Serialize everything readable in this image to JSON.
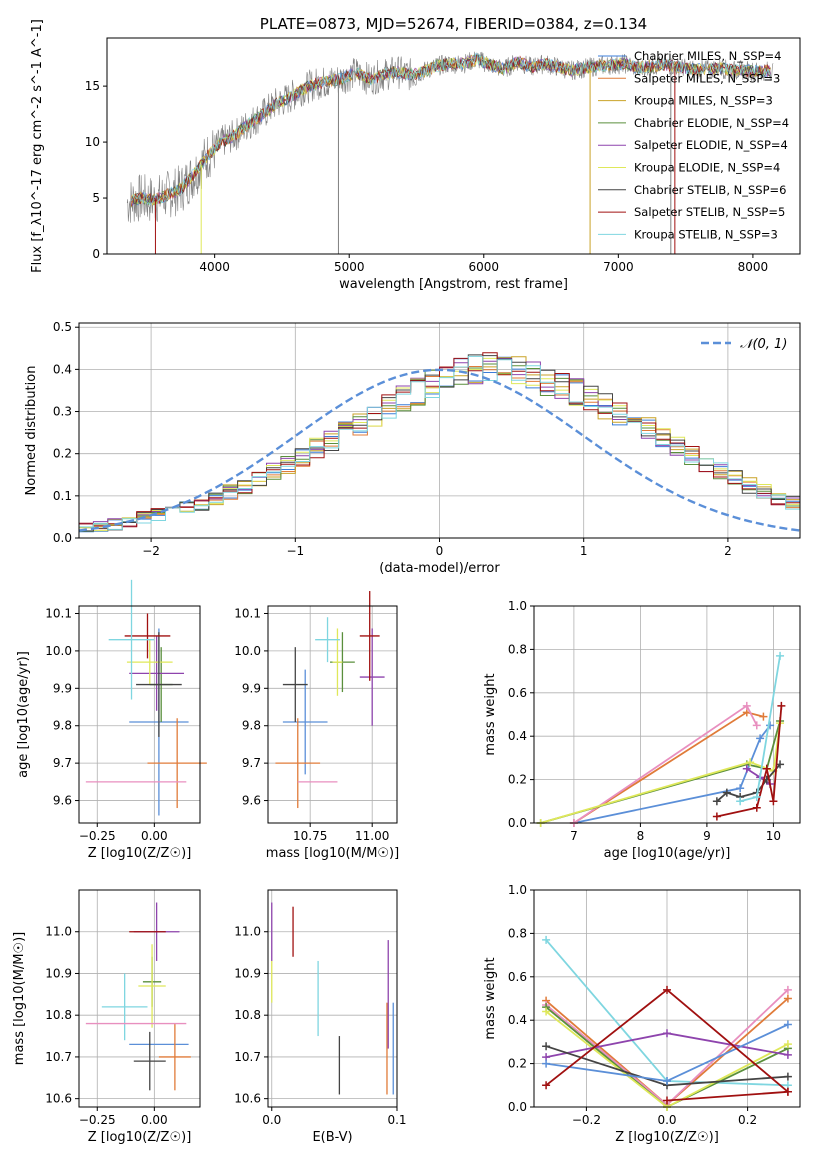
{
  "chart_data": [
    {
      "type": "line",
      "title": "PLATE=0873, MJD=52674, FIBERID=0384, z=0.134",
      "xlabel": "wavelength [Angstrom, rest frame]",
      "ylabel": "Flux [f_λ10^-17 erg cm^-2 s^-1 A^-1]",
      "xlim": [
        3200,
        8350
      ],
      "ylim": [
        0,
        19.3
      ],
      "xticks": [
        "4000",
        "5000",
        "6000",
        "7000",
        "8000"
      ],
      "yticks": [
        "0",
        "5",
        "10",
        "15"
      ],
      "grid": false,
      "legend_position": "top-right",
      "spectrum_envelope": {
        "x": [
          3350,
          3450,
          3550,
          3650,
          3750,
          3850,
          3950,
          4050,
          4150,
          4250,
          4350,
          4450,
          4550,
          4650,
          4750,
          4850,
          4950,
          5050,
          5150,
          5250,
          5350,
          5450,
          5550,
          5650,
          5750,
          5850,
          5950,
          6050,
          6150,
          6250,
          6350,
          6450,
          6550,
          6650,
          6750,
          6850,
          6950,
          7050,
          7150,
          7250,
          7350,
          7450,
          7550,
          7650,
          7750,
          7850,
          7950,
          8050,
          8150
        ],
        "y": [
          4.6,
          5.0,
          4.8,
          5.3,
          5.8,
          7.2,
          8.8,
          10.0,
          10.6,
          11.6,
          12.4,
          13.4,
          13.9,
          14.7,
          15.2,
          15.4,
          15.7,
          16.2,
          15.6,
          16.0,
          16.3,
          16.0,
          16.3,
          16.8,
          17.0,
          17.0,
          17.4,
          16.9,
          16.5,
          17.2,
          16.7,
          17.0,
          16.7,
          16.4,
          16.6,
          16.8,
          16.9,
          17.0,
          16.6,
          16.8,
          16.9,
          16.7,
          16.5,
          16.5,
          16.6,
          16.4,
          16.4,
          16.3,
          16.4
        ]
      },
      "series": [
        {
          "name": "Chabrier MILES, N_SSP=4",
          "color": "#3b7dd8"
        },
        {
          "name": "Salpeter MILES, N_SSP=3",
          "color": "#e07b39"
        },
        {
          "name": "Kroupa MILES, N_SSP=3",
          "color": "#c9a227"
        },
        {
          "name": "Chabrier ELODIE, N_SSP=4",
          "color": "#5a8f3c"
        },
        {
          "name": "Salpeter ELODIE, N_SSP=4",
          "color": "#8e44ad"
        },
        {
          "name": "Kroupa ELODIE, N_SSP=4",
          "color": "#dfe85a"
        },
        {
          "name": "Chabrier STELIB, N_SSP=6",
          "color": "#444444"
        },
        {
          "name": "Salpeter STELIB, N_SSP=5",
          "color": "#a01010"
        },
        {
          "name": "Kroupa STELIB, N_SSP=3",
          "color": "#7fd6e0"
        }
      ]
    },
    {
      "type": "line",
      "xlabel": "(data-model)/error",
      "ylabel": "Normed distribution",
      "xlim": [
        -2.5,
        2.5
      ],
      "ylim": [
        0,
        0.51
      ],
      "xticks": [
        "−2",
        "−1",
        "0",
        "1",
        "2"
      ],
      "yticks": [
        "0.0",
        "0.1",
        "0.2",
        "0.3",
        "0.4",
        "0.5"
      ],
      "grid": true,
      "legend_position": "top-right",
      "reference_label": "𝒩(0, 1)",
      "reference_color": "#5b8fd8",
      "histogram_mean": {
        "bin_edges_from": -2.5,
        "bin_width": 0.1,
        "values": [
          0.022,
          0.026,
          0.032,
          0.04,
          0.048,
          0.055,
          0.063,
          0.072,
          0.082,
          0.093,
          0.108,
          0.124,
          0.14,
          0.156,
          0.172,
          0.192,
          0.212,
          0.232,
          0.252,
          0.272,
          0.292,
          0.312,
          0.33,
          0.348,
          0.366,
          0.38,
          0.392,
          0.4,
          0.404,
          0.404,
          0.396,
          0.386,
          0.372,
          0.36,
          0.346,
          0.33,
          0.312,
          0.296,
          0.278,
          0.258,
          0.238,
          0.216,
          0.195,
          0.176,
          0.158,
          0.14,
          0.124,
          0.11,
          0.096,
          0.084,
          0.072
        ]
      }
    },
    {
      "type": "scatter",
      "xlabel": "Z [log10(Z/Z☉)]",
      "ylabel": "age [log10(age/yr)]",
      "xlim": [
        -0.33,
        0.2
      ],
      "ylim": [
        9.54,
        10.12
      ],
      "xticks": [
        "−0.25",
        "0.00"
      ],
      "yticks": [
        "9.6",
        "9.7",
        "9.8",
        "9.9",
        "10.0",
        "10.1"
      ],
      "points": [
        {
          "x": 0.02,
          "xerr": 0.13,
          "y": 9.81,
          "yerr": 0.25,
          "color": "#5b8fd8"
        },
        {
          "x": 0.1,
          "xerr": 0.13,
          "y": 9.7,
          "yerr": 0.12,
          "color": "#e07b39"
        },
        {
          "x": 0.03,
          "xerr": 0.05,
          "y": 9.91,
          "yerr": 0.1,
          "color": "#5a8f3c"
        },
        {
          "x": 0.01,
          "xerr": 0.12,
          "y": 9.94,
          "yerr": 0.1,
          "color": "#8e44ad"
        },
        {
          "x": -0.02,
          "xerr": 0.1,
          "y": 9.97,
          "yerr": 0.06,
          "color": "#dfe85a"
        },
        {
          "x": 0.02,
          "xerr": 0.1,
          "y": 9.91,
          "yerr": 0.14,
          "color": "#444444"
        },
        {
          "x": -0.03,
          "xerr": 0.1,
          "y": 10.04,
          "yerr": 0.06,
          "color": "#a01010"
        },
        {
          "x": -0.1,
          "xerr": 0.1,
          "y": 10.03,
          "yerr": 0.16,
          "color": "#7fd6e0"
        },
        {
          "x": -0.08,
          "xerr": 0.22,
          "y": 9.65,
          "yerr": 0.0,
          "color": "#e88fbf"
        }
      ]
    },
    {
      "type": "scatter",
      "xlabel": "mass [log10(M/M☉)]",
      "ylabel": "",
      "xlim": [
        10.58,
        11.1
      ],
      "ylim": [
        9.54,
        10.12
      ],
      "xticks": [
        "10.75",
        "11.00"
      ],
      "yticks": [
        "9.6",
        "9.7",
        "9.8",
        "9.9",
        "10.0",
        "10.1"
      ],
      "points": [
        {
          "x": 10.73,
          "xerr": 0.09,
          "y": 9.81,
          "yerr": 0.14,
          "color": "#5b8fd8"
        },
        {
          "x": 10.7,
          "xerr": 0.09,
          "y": 9.7,
          "yerr": 0.12,
          "color": "#e07b39"
        },
        {
          "x": 10.88,
          "xerr": 0.05,
          "y": 9.97,
          "yerr": 0.08,
          "color": "#5a8f3c"
        },
        {
          "x": 11.0,
          "xerr": 0.05,
          "y": 9.93,
          "yerr": 0.13,
          "color": "#8e44ad"
        },
        {
          "x": 10.86,
          "xerr": 0.02,
          "y": 9.97,
          "yerr": 0.09,
          "color": "#dfe85a"
        },
        {
          "x": 10.69,
          "xerr": 0.05,
          "y": 9.91,
          "yerr": 0.1,
          "color": "#444444"
        },
        {
          "x": 10.99,
          "xerr": 0.04,
          "y": 10.04,
          "yerr": 0.12,
          "color": "#a01010"
        },
        {
          "x": 10.82,
          "xerr": 0.05,
          "y": 10.03,
          "yerr": 0.06,
          "color": "#7fd6e0"
        },
        {
          "x": 10.78,
          "xerr": 0.08,
          "y": 9.65,
          "yerr": 0.0,
          "color": "#e88fbf"
        }
      ]
    },
    {
      "type": "line",
      "xlabel": "age [log10(age/yr)]",
      "ylabel": "mass weight",
      "xlim": [
        6.4,
        10.4
      ],
      "ylim": [
        0,
        1
      ],
      "xticks": [
        "7",
        "8",
        "9",
        "10"
      ],
      "yticks": [
        "0.0",
        "0.2",
        "0.4",
        "0.6",
        "0.8",
        "1.0"
      ],
      "grid": true,
      "series": [
        {
          "color": "#5b8fd8",
          "x": [
            7.0,
            9.5,
            9.8,
            9.95
          ],
          "y": [
            0.0,
            0.16,
            0.39,
            0.45
          ]
        },
        {
          "color": "#e07b39",
          "x": [
            7.0,
            9.6,
            9.85
          ],
          "y": [
            0.0,
            0.51,
            0.49
          ]
        },
        {
          "color": "#e88fbf",
          "x": [
            7.0,
            9.6,
            9.75
          ],
          "y": [
            0.0,
            0.54,
            0.45
          ]
        },
        {
          "color": "#5a8f3c",
          "x": [
            6.5,
            9.6,
            9.9,
            10.1
          ],
          "y": [
            0.0,
            0.27,
            0.25,
            0.47
          ]
        },
        {
          "color": "#dfe85a",
          "x": [
            6.5,
            9.65,
            10.0,
            10.1
          ],
          "y": [
            0.0,
            0.28,
            0.24,
            0.46
          ]
        },
        {
          "color": "#8e44ad",
          "x": [
            9.6,
            9.8,
            9.95
          ],
          "y": [
            0.25,
            0.21,
            0.18
          ]
        },
        {
          "color": "#444444",
          "x": [
            9.15,
            9.3,
            9.5,
            9.75,
            9.9,
            10.1
          ],
          "y": [
            0.1,
            0.14,
            0.12,
            0.14,
            0.2,
            0.27
          ]
        },
        {
          "color": "#a01010",
          "x": [
            9.15,
            9.75,
            9.9,
            10.0,
            10.12
          ],
          "y": [
            0.03,
            0.07,
            0.25,
            0.1,
            0.54
          ]
        },
        {
          "color": "#7fd6e0",
          "x": [
            9.5,
            9.75,
            10.1
          ],
          "y": [
            0.1,
            0.12,
            0.77
          ]
        }
      ]
    },
    {
      "type": "scatter",
      "xlabel": "Z [log10(Z/Z☉)]",
      "ylabel": "mass [log10(M/M☉)]",
      "xlim": [
        -0.33,
        0.2
      ],
      "ylim": [
        10.58,
        11.1
      ],
      "xticks": [
        "−0.25",
        "0.00"
      ],
      "yticks": [
        "10.6",
        "10.7",
        "10.8",
        "10.9",
        "11.0"
      ],
      "points": [
        {
          "x": 0.02,
          "xerr": 0.13,
          "y": 10.73,
          "yerr": 0.0,
          "color": "#5b8fd8"
        },
        {
          "x": 0.09,
          "xerr": 0.07,
          "y": 10.7,
          "yerr": 0.08,
          "color": "#e07b39"
        },
        {
          "x": -0.01,
          "xerr": 0.04,
          "y": 10.88,
          "yerr": 0.06,
          "color": "#5a8f3c"
        },
        {
          "x": 0.01,
          "xerr": 0.1,
          "y": 11.0,
          "yerr": 0.07,
          "color": "#8e44ad"
        },
        {
          "x": -0.01,
          "xerr": 0.06,
          "y": 10.87,
          "yerr": 0.1,
          "color": "#dfe85a"
        },
        {
          "x": -0.02,
          "xerr": 0.07,
          "y": 10.69,
          "yerr": 0.07,
          "color": "#444444"
        },
        {
          "x": -0.03,
          "xerr": 0.08,
          "y": 11.0,
          "yerr": 0.0,
          "color": "#a01010"
        },
        {
          "x": -0.13,
          "xerr": 0.1,
          "y": 10.82,
          "yerr": 0.08,
          "color": "#7fd6e0"
        },
        {
          "x": -0.08,
          "xerr": 0.22,
          "y": 10.78,
          "yerr": 0.0,
          "color": "#e88fbf"
        }
      ]
    },
    {
      "type": "scatter",
      "xlabel": "E(B-V)",
      "ylabel": "",
      "xlim": [
        -0.003,
        0.1
      ],
      "ylim": [
        10.58,
        11.1
      ],
      "xticks": [
        "0.0",
        "0.1"
      ],
      "yticks": [
        "10.6",
        "10.7",
        "10.8",
        "10.9",
        "11.0"
      ],
      "points": [
        {
          "x": 0.0,
          "y": 11.0,
          "yerr": 0.07,
          "color": "#8e44ad"
        },
        {
          "x": 0.0,
          "y": 10.88,
          "yerr": 0.05,
          "color": "#dfe85a"
        },
        {
          "x": 0.017,
          "y": 11.0,
          "yerr": 0.06,
          "color": "#a01010"
        },
        {
          "x": 0.037,
          "y": 10.84,
          "yerr": 0.09,
          "color": "#7fd6e0"
        },
        {
          "x": 0.054,
          "y": 10.68,
          "yerr": 0.07,
          "color": "#444444"
        },
        {
          "x": 0.092,
          "y": 10.72,
          "yerr": 0.11,
          "color": "#e07b39"
        },
        {
          "x": 0.093,
          "y": 10.85,
          "yerr": 0.13,
          "color": "#8e44ad"
        },
        {
          "x": 0.097,
          "y": 10.72,
          "yerr": 0.11,
          "color": "#5b8fd8"
        }
      ]
    },
    {
      "type": "line",
      "xlabel": "Z [log10(Z/Z☉)]",
      "ylabel": "mass weight",
      "xlim": [
        -0.33,
        0.33
      ],
      "ylim": [
        0,
        1
      ],
      "xticks": [
        "−0.2",
        "0.0",
        "0.2"
      ],
      "yticks": [
        "0.0",
        "0.2",
        "0.4",
        "0.6",
        "0.8",
        "1.0"
      ],
      "grid": true,
      "series": [
        {
          "color": "#7fd6e0",
          "x": [
            -0.3,
            0.0,
            0.3
          ],
          "y": [
            0.77,
            0.12,
            0.1
          ]
        },
        {
          "color": "#e07b39",
          "x": [
            -0.3,
            0.0,
            0.3
          ],
          "y": [
            0.49,
            0.01,
            0.5
          ]
        },
        {
          "color": "#e88fbf",
          "x": [
            -0.3,
            0.0,
            0.3
          ],
          "y": [
            0.47,
            0.01,
            0.54
          ]
        },
        {
          "color": "#5a8f3c",
          "x": [
            -0.3,
            0.0,
            0.3
          ],
          "y": [
            0.46,
            0.0,
            0.27
          ]
        },
        {
          "color": "#dfe85a",
          "x": [
            -0.3,
            0.0,
            0.3
          ],
          "y": [
            0.44,
            0.0,
            0.29
          ]
        },
        {
          "color": "#8e44ad",
          "x": [
            -0.3,
            0.0,
            0.3
          ],
          "y": [
            0.23,
            0.34,
            0.24
          ]
        },
        {
          "color": "#444444",
          "x": [
            -0.3,
            0.0,
            0.3
          ],
          "y": [
            0.28,
            0.1,
            0.14
          ]
        },
        {
          "color": "#5b8fd8",
          "x": [
            -0.3,
            0.0,
            0.3
          ],
          "y": [
            0.2,
            0.12,
            0.38
          ]
        },
        {
          "color": "#a01010",
          "x": [
            -0.3,
            0.0,
            0.3
          ],
          "y": [
            0.1,
            0.54,
            0.07
          ]
        },
        {
          "color": "#a01010",
          "x": [
            0.0,
            0.3
          ],
          "y": [
            0.03,
            0.07
          ]
        }
      ]
    }
  ]
}
